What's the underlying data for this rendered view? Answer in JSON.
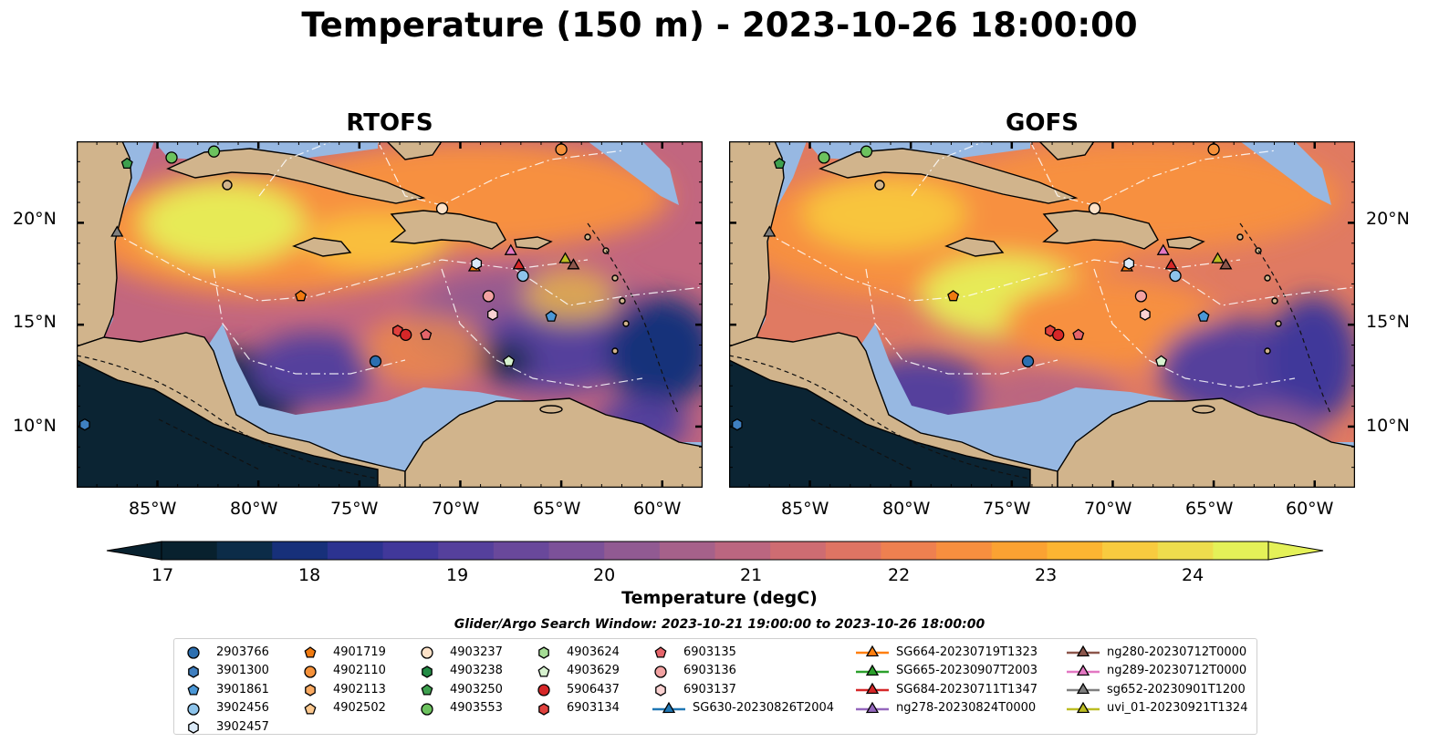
{
  "title": "Temperature (150 m) - 2023-10-26 18:00:00",
  "panels": [
    {
      "id": "rtofs",
      "title": "RTOFS"
    },
    {
      "id": "gofs",
      "title": "GOFS"
    }
  ],
  "lat_ticks": [
    "20°N",
    "15°N",
    "10°N"
  ],
  "lon_ticks": [
    "85°W",
    "80°W",
    "75°W",
    "70°W",
    "65°W",
    "60°W"
  ],
  "colorbar": {
    "label": "Temperature (degC)",
    "ticks": [
      "17",
      "18",
      "19",
      "20",
      "21",
      "22",
      "23",
      "24"
    ],
    "min": 16.75,
    "max": 24.5,
    "colors": [
      "#08212e",
      "#0c2c48",
      "#17307a",
      "#2c3390",
      "#41389a",
      "#55409c",
      "#69489b",
      "#7c5199",
      "#915a92",
      "#a6618a",
      "#bb6680",
      "#ce6c72",
      "#df7463",
      "#ee8050",
      "#f78f3f",
      "#fba232",
      "#fcb532",
      "#f8cb3f",
      "#eedd4d",
      "#e4f158"
    ]
  },
  "search_window": "Glider/Argo Search Window: 2023-10-21 19:00:00 to 2023-10-26 18:00:00",
  "legend": [
    {
      "label": "2903766",
      "marker": "circle",
      "color": "#2c6fb0"
    },
    {
      "label": "3901300",
      "marker": "hexagon",
      "color": "#3f7fc0"
    },
    {
      "label": "3901861",
      "marker": "pentagon",
      "color": "#4a97d6"
    },
    {
      "label": "3902456",
      "marker": "circle",
      "color": "#8dc3ea"
    },
    {
      "label": "3902457",
      "marker": "hexagon",
      "color": "#dbeaf8"
    },
    {
      "label": "4901719",
      "marker": "pentagon",
      "color": "#f07a10"
    },
    {
      "label": "4902110",
      "marker": "circle",
      "color": "#f5913a"
    },
    {
      "label": "4902113",
      "marker": "hexagon",
      "color": "#f9aa62"
    },
    {
      "label": "4902502",
      "marker": "pentagon",
      "color": "#fcc88e"
    },
    {
      "label": "4903237",
      "marker": "circle",
      "color": "#fde2c8"
    },
    {
      "label": "4903238",
      "marker": "hexagon",
      "color": "#238b45"
    },
    {
      "label": "4903250",
      "marker": "pentagon",
      "color": "#3ea04e"
    },
    {
      "label": "4903553",
      "marker": "circle",
      "color": "#6cc25e"
    },
    {
      "label": "4903624",
      "marker": "hexagon",
      "color": "#a5dc95"
    },
    {
      "label": "4903629",
      "marker": "pentagon",
      "color": "#d7f2cf"
    },
    {
      "label": "5906437",
      "marker": "circle",
      "color": "#d62728"
    },
    {
      "label": "6903134",
      "marker": "hexagon",
      "color": "#e0413d"
    },
    {
      "label": "6903135",
      "marker": "pentagon",
      "color": "#e5646a"
    },
    {
      "label": "6903136",
      "marker": "circle",
      "color": "#f2a2a2"
    },
    {
      "label": "6903137",
      "marker": "hexagon",
      "color": "#fad2d2"
    },
    {
      "label": "SG630-20230826T2004",
      "marker": "triangle-line",
      "color": "#1f77b4"
    },
    {
      "label": "SG664-20230719T1323",
      "marker": "triangle-line",
      "color": "#ff7f0e"
    },
    {
      "label": "SG665-20230907T2003",
      "marker": "triangle-line",
      "color": "#2ca02c"
    },
    {
      "label": "SG684-20230711T1347",
      "marker": "triangle-line",
      "color": "#d62728"
    },
    {
      "label": "ng278-20230824T0000",
      "marker": "triangle-line",
      "color": "#9467bd"
    },
    {
      "label": "ng280-20230712T0000",
      "marker": "triangle-line",
      "color": "#8c564b"
    },
    {
      "label": "ng289-20230712T0000",
      "marker": "triangle-line",
      "color": "#e377c2"
    },
    {
      "label": "sg652-20230901T1200",
      "marker": "triangle-line",
      "color": "#7f7f7f"
    },
    {
      "label": "uvi_01-20230921T1324",
      "marker": "triangle-line",
      "color": "#bcbd22"
    }
  ],
  "map_extent": {
    "lon": [
      -89,
      -58
    ],
    "lat": [
      7,
      24
    ]
  },
  "colors": {
    "land": "#d1b48c",
    "shelf": "#97b8e2",
    "land_pacific": "#0b2433"
  },
  "observations": [
    {
      "label": "4903250",
      "lon": -86.5,
      "lat": 22.9
    },
    {
      "label": "4903553",
      "lon": -84.3,
      "lat": 23.2
    },
    {
      "label": "4903553",
      "lon": -82.2,
      "lat": 23.5
    },
    {
      "label": "4902110",
      "lon": -65.0,
      "lat": 23.6
    },
    {
      "label": "sg652-20230901T1200",
      "lon": -87.0,
      "lat": 19.5
    },
    {
      "label": "4903237",
      "lon": -70.9,
      "lat": 20.7
    },
    {
      "label": "4901719",
      "lon": -77.9,
      "lat": 16.4
    },
    {
      "label": "SG664-20230719T1323",
      "lon": -69.3,
      "lat": 17.8
    },
    {
      "label": "3902457",
      "lon": -69.2,
      "lat": 18.0
    },
    {
      "label": "ng289-20230712T0000",
      "lon": -67.5,
      "lat": 18.6
    },
    {
      "label": "SG684-20230711T1347",
      "lon": -67.1,
      "lat": 17.9
    },
    {
      "label": "3902456",
      "lon": -66.9,
      "lat": 17.4
    },
    {
      "label": "uvi_01-20230921T1324",
      "lon": -64.8,
      "lat": 18.2
    },
    {
      "label": "ng280-20230712T0000",
      "lon": -64.4,
      "lat": 17.9
    },
    {
      "label": "6903136",
      "lon": -68.6,
      "lat": 16.4
    },
    {
      "label": "6903137",
      "lon": -68.4,
      "lat": 15.5
    },
    {
      "label": "3901861",
      "lon": -65.5,
      "lat": 15.4
    },
    {
      "label": "6903134",
      "lon": -73.1,
      "lat": 14.7
    },
    {
      "label": "5906437",
      "lon": -72.7,
      "lat": 14.5
    },
    {
      "label": "6903135",
      "lon": -71.7,
      "lat": 14.5
    },
    {
      "label": "2903766",
      "lon": -74.2,
      "lat": 13.2
    },
    {
      "label": "4903629",
      "lon": -67.6,
      "lat": 13.2
    },
    {
      "label": "3901300",
      "lon": -88.6,
      "lat": 10.1
    }
  ]
}
